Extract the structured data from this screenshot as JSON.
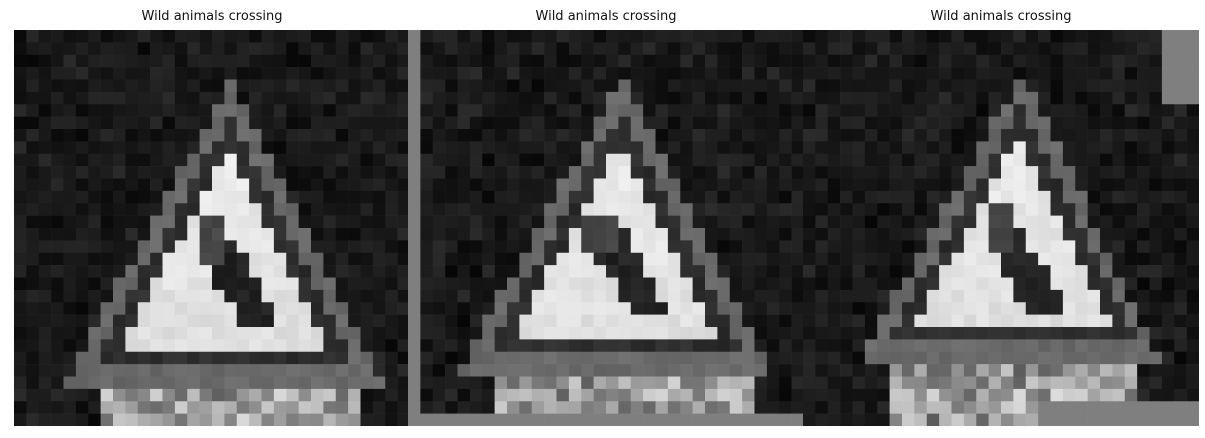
{
  "figure": {
    "panels": [
      {
        "title": "Wild animals crossing",
        "variant": "original"
      },
      {
        "title": "Wild animals crossing",
        "variant": "shifted-with-gray-border"
      },
      {
        "title": "Wild animals crossing",
        "variant": "rotated-scaled-with-gray-border"
      }
    ]
  },
  "colors": {
    "background": "#0c0c0c",
    "sign_border": "#6a6a6a",
    "sign_interior": "#f4f4f4",
    "glyph": "#1a1a1a",
    "pad": "#7f7f7f"
  }
}
